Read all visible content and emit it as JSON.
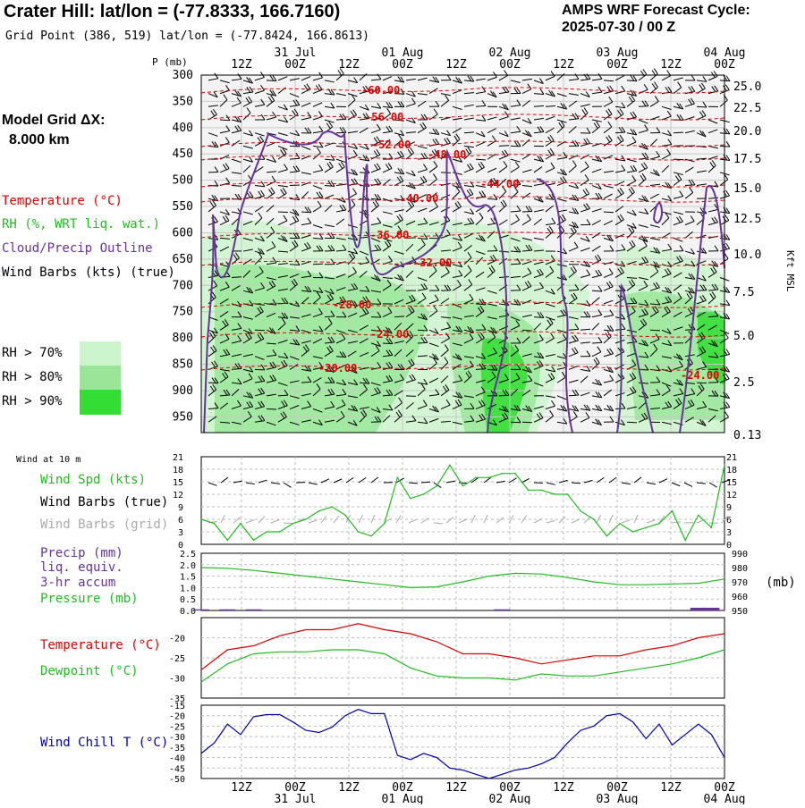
{
  "header": {
    "station_title": "Crater Hill:  lat/lon = (-77.8333, 166.7160)",
    "grid_point": "Grid Point (386, 519) lat/lon = (-77.8424, 166.8613)",
    "forecast_title": "AMPS WRF Forecast Cycle:",
    "forecast_cycle": "2025-07-30 / 00  Z"
  },
  "time_axis": {
    "hour_labels": [
      "12Z",
      "00Z",
      "12Z",
      "00Z",
      "12Z",
      "00Z",
      "12Z",
      "00Z",
      "12Z",
      "00Z"
    ],
    "date_labels": [
      "31 Jul",
      "01 Aug",
      "02 Aug",
      "03 Aug",
      "04 Aug"
    ]
  },
  "legend": {
    "model_grid": "Model Grid ΔX:",
    "model_grid_value": "8.000 km",
    "temperature": "Temperature (°C)",
    "rh": "RH (%, WRT liq. wat.)",
    "cloud": "Cloud/Precip Outline",
    "wind_barbs": "Wind Barbs (kts) (true)",
    "rh_levels": [
      {
        "label": "RH > 70%",
        "color": "#ccf5cc"
      },
      {
        "label": "RH > 80%",
        "color": "#99e699"
      },
      {
        "label": "RH > 90%",
        "color": "#33dd33"
      }
    ],
    "colors": {
      "temperature": "#dd0000",
      "rh": "#22bb22",
      "cloud": "#663399",
      "wind": "#000000",
      "wind_grid": "#aaaaaa",
      "chill": "#0000aa"
    }
  },
  "panels": {
    "wind_at_10m": "Wind at 10 m",
    "wind_spd": "Wind Spd (kts)",
    "wind_barbs_true": "Wind Barbs (true)",
    "wind_barbs_grid": "Wind Barbs (grid)",
    "precip": "Precip (mm)",
    "precip_sub1": "liq. equiv.",
    "precip_sub2": "3-hr accum",
    "pressure": "Pressure (mb)",
    "pressure_unit": "(mb)",
    "temperature": "Temperature (°C)",
    "dewpoint": "Dewpoint (°C)",
    "wind_chill": "Wind Chill T (°C)"
  },
  "chart_data": [
    {
      "type": "heatmap",
      "y_left_label": "P (mb)",
      "y_right_label": "Kft MSL",
      "pressure_levels": [
        300,
        350,
        400,
        450,
        500,
        550,
        600,
        650,
        700,
        750,
        800,
        850,
        900,
        950
      ],
      "kft_ticks": [
        "25.0",
        "22.5",
        "20.0",
        "17.5",
        "15.0",
        "12.5",
        "10.0",
        "7.5",
        "5.0",
        "2.5",
        "0.13"
      ],
      "temperature_contour_labels": [
        "-60.00",
        "-56.00",
        "-52.00",
        "-48.00",
        "-44.00",
        "-40.00",
        "-36.00",
        "-32.00",
        "-28.00",
        "-24.00",
        "-20.00",
        "-24.00"
      ]
    },
    {
      "type": "line",
      "title": "Wind Spd (kts)",
      "y_ticks": [
        0,
        3,
        6,
        9,
        12,
        15,
        18,
        21
      ],
      "ylim": [
        0,
        21
      ],
      "x_hours": [
        0,
        3,
        6,
        9,
        12,
        15,
        18,
        21,
        24,
        27,
        30,
        33,
        36,
        39,
        42,
        45,
        48,
        51,
        54,
        57,
        60,
        63,
        66,
        69,
        72,
        75,
        78,
        81,
        84,
        87,
        90,
        93,
        96,
        99,
        102,
        105,
        108,
        111,
        114,
        117,
        120
      ],
      "values": [
        6,
        5,
        1,
        5,
        1,
        3,
        3,
        5,
        6,
        8,
        9,
        7,
        3,
        2,
        5,
        16,
        11,
        12,
        14,
        19,
        14,
        16,
        16,
        17,
        17,
        13,
        13,
        12,
        12,
        8,
        6,
        2,
        5,
        3,
        4,
        5,
        8,
        1,
        7,
        4,
        19
      ]
    },
    {
      "type": "line",
      "title": "Pressure (mb)",
      "y_left_ticks": [
        "0.0",
        "0.5",
        "1.0",
        "1.5",
        "2.0",
        "2.5"
      ],
      "y_right_ticks": [
        950,
        960,
        970,
        980,
        990
      ],
      "ylim_precip": [
        0,
        2.5
      ],
      "ylim_pressure": [
        950,
        990
      ],
      "x_hours": [
        0,
        6,
        12,
        18,
        24,
        30,
        36,
        42,
        48,
        54,
        60,
        66,
        72,
        78,
        84,
        90,
        96,
        102,
        108,
        114,
        120
      ],
      "pressure": [
        980,
        979.5,
        978,
        976,
        974,
        972,
        970,
        968,
        966,
        966.5,
        970,
        974,
        976,
        975.5,
        973,
        970,
        968,
        968,
        968.5,
        969,
        972
      ],
      "precip": [
        {
          "x": 0,
          "v": 0.05
        },
        {
          "x": 6,
          "v": 0.05
        },
        {
          "x": 12,
          "v": 0.05
        },
        {
          "x": 69,
          "v": 0.05
        },
        {
          "x": 114,
          "v": 0.12
        },
        {
          "x": 117,
          "v": 0.12
        }
      ]
    },
    {
      "type": "line",
      "title": "Temperature (°C)",
      "y_ticks": [
        -35,
        -30,
        -25,
        -20
      ],
      "ylim": [
        -35,
        -15
      ],
      "x_hours": [
        0,
        6,
        12,
        18,
        24,
        30,
        36,
        42,
        48,
        54,
        60,
        66,
        72,
        78,
        84,
        90,
        96,
        102,
        108,
        114,
        120
      ],
      "series": [
        {
          "name": "Temperature",
          "values": [
            -28,
            -23,
            -22,
            -19.5,
            -18,
            -18,
            -16.5,
            -18,
            -19,
            -21,
            -24,
            -24,
            -25,
            -26.5,
            -25.5,
            -24.5,
            -24.5,
            -23,
            -22,
            -20,
            -19
          ]
        },
        {
          "name": "Dewpoint",
          "values": [
            -31,
            -26.5,
            -24,
            -23.5,
            -23.5,
            -23,
            -23,
            -24,
            -27.5,
            -29.5,
            -30,
            -30,
            -30.5,
            -29,
            -29.5,
            -29.5,
            -28.5,
            -27.5,
            -26.5,
            -25,
            -23
          ]
        }
      ]
    },
    {
      "type": "line",
      "title": "Wind Chill T (°C)",
      "y_ticks": [
        -50,
        -45,
        -40,
        -35,
        -30,
        -25,
        -20,
        -15
      ],
      "ylim": [
        -50,
        -15
      ],
      "x_hours": [
        0,
        3,
        6,
        9,
        12,
        15,
        18,
        21,
        24,
        27,
        30,
        33,
        36,
        39,
        42,
        45,
        48,
        51,
        54,
        57,
        60,
        63,
        66,
        69,
        72,
        75,
        78,
        81,
        84,
        87,
        90,
        93,
        96,
        99,
        102,
        105,
        108,
        111,
        114,
        117,
        120
      ],
      "values": [
        -38,
        -33,
        -24,
        -29,
        -20.5,
        -19.5,
        -19.5,
        -23,
        -27,
        -28,
        -25.5,
        -20,
        -17,
        -19,
        -19,
        -39,
        -41,
        -38,
        -40,
        -45,
        -46,
        -48,
        -50,
        -48,
        -46,
        -45,
        -43,
        -40,
        -33,
        -27,
        -25,
        -20,
        -19,
        -23,
        -31,
        -24,
        -34,
        -29,
        -24,
        -29,
        -40
      ]
    }
  ]
}
